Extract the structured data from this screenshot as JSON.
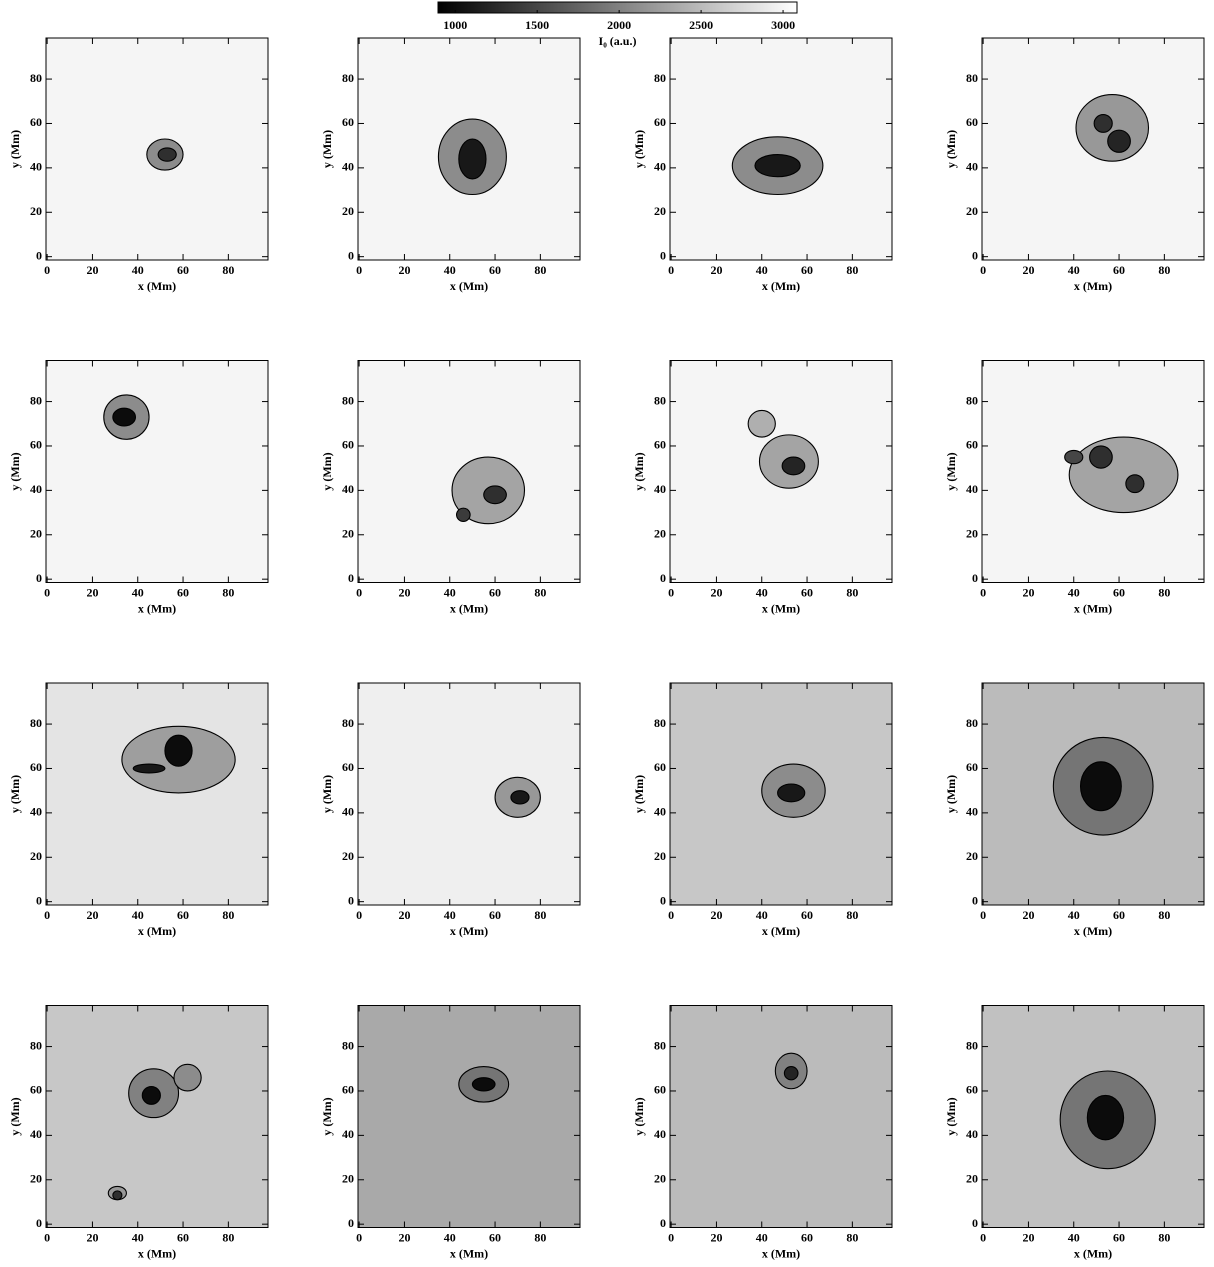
{
  "chart_data": [
    {
      "type": "colorbar",
      "label": "I₀ (a.u.)",
      "clim": [
        895,
        3085
      ],
      "ticks": [
        1000,
        1500,
        2000,
        2500,
        3000
      ]
    },
    {
      "type": "image",
      "background": 3000,
      "xlim": [
        -0.5,
        97.5
      ],
      "ylim": [
        -1.5,
        98.5
      ],
      "xticks": [
        0,
        20,
        40,
        60,
        80
      ],
      "yticks": [
        0,
        20,
        40,
        60,
        80
      ],
      "xlabel": "x (Mm)",
      "ylabel": "y (Mm)",
      "penumbrae": [
        {
          "x": 52,
          "y": 46,
          "rx": 8,
          "ry": 7,
          "value": 2100
        }
      ],
      "umbrae": [
        {
          "x": 53,
          "y": 46,
          "rx": 4,
          "ry": 3,
          "value": 1300
        }
      ]
    },
    {
      "type": "image",
      "background": 3000,
      "xlim": [
        -0.5,
        97.5
      ],
      "ylim": [
        -1.5,
        98.5
      ],
      "xticks": [
        0,
        20,
        40,
        60,
        80
      ],
      "yticks": [
        0,
        20,
        40,
        60,
        80
      ],
      "xlabel": "x (Mm)",
      "ylabel": "y (Mm)",
      "penumbrae": [
        {
          "x": 50,
          "y": 45,
          "rx": 15,
          "ry": 17,
          "value": 2100
        }
      ],
      "umbrae": [
        {
          "x": 50,
          "y": 44,
          "rx": 6,
          "ry": 9,
          "value": 1100
        }
      ]
    },
    {
      "type": "image",
      "background": 3000,
      "xlim": [
        -0.5,
        97.5
      ],
      "ylim": [
        -1.5,
        98.5
      ],
      "xticks": [
        0,
        20,
        40,
        60,
        80
      ],
      "yticks": [
        0,
        20,
        40,
        60,
        80
      ],
      "xlabel": "x (Mm)",
      "ylabel": "y (Mm)",
      "penumbrae": [
        {
          "x": 47,
          "y": 41,
          "rx": 20,
          "ry": 13,
          "value": 2100
        }
      ],
      "umbrae": [
        {
          "x": 47,
          "y": 41,
          "rx": 10,
          "ry": 5,
          "value": 1100
        }
      ]
    },
    {
      "type": "image",
      "background": 3000,
      "xlim": [
        -0.5,
        97.5
      ],
      "ylim": [
        -1.5,
        98.5
      ],
      "xticks": [
        0,
        20,
        40,
        60,
        80
      ],
      "yticks": [
        0,
        20,
        40,
        60,
        80
      ],
      "xlabel": "x (Mm)",
      "ylabel": "y (Mm)",
      "penumbrae": [
        {
          "x": 57,
          "y": 58,
          "rx": 16,
          "ry": 15,
          "value": 2200
        }
      ],
      "umbrae": [
        {
          "x": 60,
          "y": 52,
          "rx": 5,
          "ry": 5,
          "value": 1200
        },
        {
          "x": 53,
          "y": 60,
          "rx": 4,
          "ry": 4,
          "value": 1300
        }
      ]
    },
    {
      "type": "image",
      "background": 3000,
      "xlim": [
        -0.5,
        97.5
      ],
      "ylim": [
        -1.5,
        98.5
      ],
      "xticks": [
        0,
        20,
        40,
        60,
        80
      ],
      "yticks": [
        0,
        20,
        40,
        60,
        80
      ],
      "xlabel": "x (Mm)",
      "ylabel": "y (Mm)",
      "penumbrae": [
        {
          "x": 35,
          "y": 73,
          "rx": 10,
          "ry": 10,
          "value": 2100
        }
      ],
      "umbrae": [
        {
          "x": 34,
          "y": 73,
          "rx": 5,
          "ry": 4,
          "value": 1000
        }
      ]
    },
    {
      "type": "image",
      "background": 3000,
      "xlim": [
        -0.5,
        97.5
      ],
      "ylim": [
        -1.5,
        98.5
      ],
      "xticks": [
        0,
        20,
        40,
        60,
        80
      ],
      "yticks": [
        0,
        20,
        40,
        60,
        80
      ],
      "xlabel": "x (Mm)",
      "ylabel": "y (Mm)",
      "penumbrae": [
        {
          "x": 57,
          "y": 40,
          "rx": 16,
          "ry": 15,
          "value": 2300
        }
      ],
      "umbrae": [
        {
          "x": 60,
          "y": 38,
          "rx": 5,
          "ry": 4,
          "value": 1300
        },
        {
          "x": 46,
          "y": 29,
          "rx": 3,
          "ry": 3,
          "value": 1400
        }
      ]
    },
    {
      "type": "image",
      "background": 3000,
      "xlim": [
        -0.5,
        97.5
      ],
      "ylim": [
        -1.5,
        98.5
      ],
      "xticks": [
        0,
        20,
        40,
        60,
        80
      ],
      "yticks": [
        0,
        20,
        40,
        60,
        80
      ],
      "xlabel": "x (Mm)",
      "ylabel": "y (Mm)",
      "penumbrae": [
        {
          "x": 52,
          "y": 53,
          "rx": 13,
          "ry": 12,
          "value": 2300
        },
        {
          "x": 40,
          "y": 70,
          "rx": 6,
          "ry": 6,
          "value": 2400
        }
      ],
      "umbrae": [
        {
          "x": 54,
          "y": 51,
          "rx": 5,
          "ry": 4,
          "value": 1200
        }
      ]
    },
    {
      "type": "image",
      "background": 3000,
      "xlim": [
        -0.5,
        97.5
      ],
      "ylim": [
        -1.5,
        98.5
      ],
      "xticks": [
        0,
        20,
        40,
        60,
        80
      ],
      "yticks": [
        0,
        20,
        40,
        60,
        80
      ],
      "xlabel": "x (Mm)",
      "ylabel": "y (Mm)",
      "penumbrae": [
        {
          "x": 62,
          "y": 47,
          "rx": 24,
          "ry": 17,
          "value": 2300
        }
      ],
      "umbrae": [
        {
          "x": 52,
          "y": 55,
          "rx": 5,
          "ry": 5,
          "value": 1300
        },
        {
          "x": 67,
          "y": 43,
          "rx": 4,
          "ry": 4,
          "value": 1300
        },
        {
          "x": 40,
          "y": 55,
          "rx": 4,
          "ry": 3,
          "value": 1500
        }
      ]
    },
    {
      "type": "image",
      "background": 2850,
      "xlim": [
        -0.5,
        97.5
      ],
      "ylim": [
        -1.5,
        98.5
      ],
      "xticks": [
        0,
        20,
        40,
        60,
        80
      ],
      "yticks": [
        0,
        20,
        40,
        60,
        80
      ],
      "xlabel": "x (Mm)",
      "ylabel": "y (Mm)",
      "penumbrae": [
        {
          "x": 58,
          "y": 64,
          "rx": 25,
          "ry": 15,
          "value": 2250
        }
      ],
      "umbrae": [
        {
          "x": 58,
          "y": 68,
          "rx": 6,
          "ry": 7,
          "value": 1000
        },
        {
          "x": 45,
          "y": 60,
          "rx": 7,
          "ry": 2,
          "value": 1100
        }
      ]
    },
    {
      "type": "image",
      "background": 2950,
      "xlim": [
        -0.5,
        97.5
      ],
      "ylim": [
        -1.5,
        98.5
      ],
      "xticks": [
        0,
        20,
        40,
        60,
        80
      ],
      "yticks": [
        0,
        20,
        40,
        60,
        80
      ],
      "xlabel": "x (Mm)",
      "ylabel": "y (Mm)",
      "penumbrae": [
        {
          "x": 70,
          "y": 47,
          "rx": 10,
          "ry": 9,
          "value": 2200
        }
      ],
      "umbrae": [
        {
          "x": 71,
          "y": 47,
          "rx": 4,
          "ry": 3,
          "value": 1100
        }
      ]
    },
    {
      "type": "image",
      "background": 2600,
      "xlim": [
        -0.5,
        97.5
      ],
      "ylim": [
        -1.5,
        98.5
      ],
      "xticks": [
        0,
        20,
        40,
        60,
        80
      ],
      "yticks": [
        0,
        20,
        40,
        60,
        80
      ],
      "xlabel": "x (Mm)",
      "ylabel": "y (Mm)",
      "penumbrae": [
        {
          "x": 54,
          "y": 50,
          "rx": 14,
          "ry": 12,
          "value": 2100
        }
      ],
      "umbrae": [
        {
          "x": 53,
          "y": 49,
          "rx": 6,
          "ry": 4,
          "value": 1100
        }
      ]
    },
    {
      "type": "image",
      "background": 2500,
      "xlim": [
        -0.5,
        97.5
      ],
      "ylim": [
        -1.5,
        98.5
      ],
      "xticks": [
        0,
        20,
        40,
        60,
        80
      ],
      "yticks": [
        0,
        20,
        40,
        60,
        80
      ],
      "xlabel": "x (Mm)",
      "ylabel": "y (Mm)",
      "penumbrae": [
        {
          "x": 53,
          "y": 52,
          "rx": 22,
          "ry": 22,
          "value": 1900
        }
      ],
      "umbrae": [
        {
          "x": 52,
          "y": 52,
          "rx": 9,
          "ry": 11,
          "value": 1000
        }
      ]
    },
    {
      "type": "image",
      "background": 2600,
      "xlim": [
        -0.5,
        97.5
      ],
      "ylim": [
        -1.5,
        98.5
      ],
      "xticks": [
        0,
        20,
        40,
        60,
        80
      ],
      "yticks": [
        0,
        20,
        40,
        60,
        80
      ],
      "xlabel": "x (Mm)",
      "ylabel": "y (Mm)",
      "penumbrae": [
        {
          "x": 47,
          "y": 59,
          "rx": 11,
          "ry": 11,
          "value": 2000
        },
        {
          "x": 31,
          "y": 14,
          "rx": 4,
          "ry": 3,
          "value": 2200
        },
        {
          "x": 62,
          "y": 66,
          "rx": 6,
          "ry": 6,
          "value": 2100
        }
      ],
      "umbrae": [
        {
          "x": 46,
          "y": 58,
          "rx": 4,
          "ry": 4,
          "value": 1000
        },
        {
          "x": 31,
          "y": 13,
          "rx": 2,
          "ry": 2,
          "value": 1300
        }
      ]
    },
    {
      "type": "image",
      "background": 2350,
      "xlim": [
        -0.5,
        97.5
      ],
      "ylim": [
        -1.5,
        98.5
      ],
      "xticks": [
        0,
        20,
        40,
        60,
        80
      ],
      "yticks": [
        0,
        20,
        40,
        60,
        80
      ],
      "xlabel": "x (Mm)",
      "ylabel": "y (Mm)",
      "penumbrae": [
        {
          "x": 55,
          "y": 63,
          "rx": 11,
          "ry": 8,
          "value": 1900
        }
      ],
      "umbrae": [
        {
          "x": 55,
          "y": 63,
          "rx": 5,
          "ry": 3,
          "value": 1000
        }
      ]
    },
    {
      "type": "image",
      "background": 2500,
      "xlim": [
        -0.5,
        97.5
      ],
      "ylim": [
        -1.5,
        98.5
      ],
      "xticks": [
        0,
        20,
        40,
        60,
        80
      ],
      "yticks": [
        0,
        20,
        40,
        60,
        80
      ],
      "xlabel": "x (Mm)",
      "ylabel": "y (Mm)",
      "penumbrae": [
        {
          "x": 53,
          "y": 69,
          "rx": 7,
          "ry": 8,
          "value": 2000
        }
      ],
      "umbrae": [
        {
          "x": 53,
          "y": 68,
          "rx": 3,
          "ry": 3,
          "value": 1200
        }
      ]
    },
    {
      "type": "image",
      "background": 2550,
      "xlim": [
        -0.5,
        97.5
      ],
      "ylim": [
        -1.5,
        98.5
      ],
      "xticks": [
        0,
        20,
        40,
        60,
        80
      ],
      "yticks": [
        0,
        20,
        40,
        60,
        80
      ],
      "xlabel": "x (Mm)",
      "ylabel": "y (Mm)",
      "penumbrae": [
        {
          "x": 55,
          "y": 47,
          "rx": 21,
          "ry": 22,
          "value": 1900
        }
      ],
      "umbrae": [
        {
          "x": 54,
          "y": 48,
          "rx": 8,
          "ry": 10,
          "value": 1000
        }
      ]
    }
  ]
}
